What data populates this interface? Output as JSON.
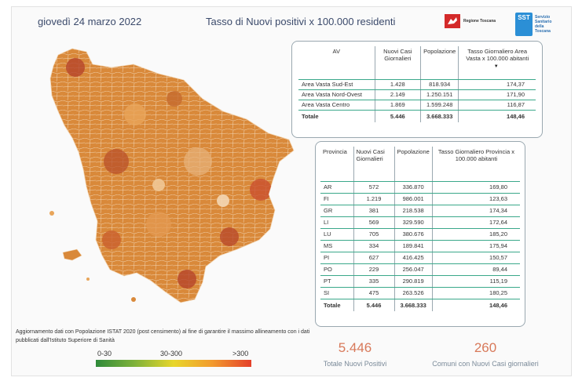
{
  "header": {
    "date": "giovedì 24 marzo 2022",
    "title": "Tasso di Nuovi positivi x 100.000 residenti",
    "logo_regione": "Regione Toscana",
    "logo_sst_mark": "SST",
    "logo_sst_text": "Servizio Sanitario della Toscana"
  },
  "colors": {
    "low": "#2f8a3a",
    "mid": "#e8d62a",
    "high": "#e4402a",
    "kpi": "#d8795a",
    "row_rule": "#3aa88a"
  },
  "area_vasta": {
    "headers": [
      "AV",
      "Nuovi Casi Giornalieri",
      "Popolazione",
      "Tasso Giornaliero Area Vasta x 100.000 abitanti"
    ],
    "rows": [
      [
        "Area Vasta Sud-Est",
        "1.428",
        "818.934",
        "174,37"
      ],
      [
        "Area Vasta Nord-Ovest",
        "2.149",
        "1.250.151",
        "171,90"
      ],
      [
        "Area Vasta Centro",
        "1.869",
        "1.599.248",
        "116,87"
      ]
    ],
    "total": [
      "Totale",
      "5.446",
      "3.668.333",
      "148,46"
    ]
  },
  "province": {
    "headers": [
      "Provincia",
      "Nuovi Casi Giornalieri",
      "Popolazione",
      "Tasso Giornaliero Provincia x 100.000 abitanti"
    ],
    "rows": [
      [
        "AR",
        "572",
        "336.870",
        "169,80"
      ],
      [
        "FI",
        "1.219",
        "986.001",
        "123,63"
      ],
      [
        "GR",
        "381",
        "218.538",
        "174,34"
      ],
      [
        "LI",
        "569",
        "329.590",
        "172,64"
      ],
      [
        "LU",
        "705",
        "380.676",
        "185,20"
      ],
      [
        "MS",
        "334",
        "189.841",
        "175,94"
      ],
      [
        "PI",
        "627",
        "416.425",
        "150,57"
      ],
      [
        "PO",
        "229",
        "256.047",
        "89,44"
      ],
      [
        "PT",
        "335",
        "290.819",
        "115,19"
      ],
      [
        "SI",
        "475",
        "263.526",
        "180,25"
      ]
    ],
    "total": [
      "Totale",
      "5.446",
      "3.668.333",
      "148,46"
    ]
  },
  "footnote": "Aggiornamento dati con Popolazione ISTAT 2020 (post censimento) al fine di garantire il massimo allineamento con i dati pubblicati dall'Istituto Superiore di Sanità",
  "legend": {
    "labels": [
      "0-30",
      "30-300",
      ">300"
    ]
  },
  "kpis": {
    "totale_value": "5.446",
    "totale_caption": "Totale Nuovi Positivi",
    "comuni_value": "260",
    "comuni_caption": "Comuni con Nuovi Casi giornalieri"
  }
}
